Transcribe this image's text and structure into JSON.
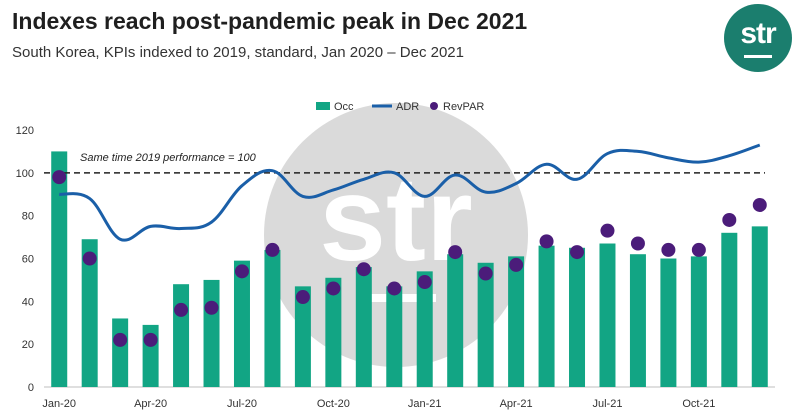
{
  "header": {
    "title": "Indexes reach post-pandemic peak in Dec 2021",
    "subtitle": "South Korea, KPIs indexed to 2019, standard, Jan 2020 – Dec 2021",
    "logo_text": "str",
    "watermark_text": "str"
  },
  "colors": {
    "occ": "#12a584",
    "adr": "#1a5fa8",
    "revpar": "#4b1c7a",
    "reference": "#222222",
    "logo": "#1b7e6e"
  },
  "chart_data": {
    "type": "bar",
    "title": "Indexes reach post-pandemic peak in Dec 2021",
    "subtitle": "South Korea, KPIs indexed to 2019, standard, Jan 2020 – Dec 2021",
    "xlabel": "",
    "ylabel": "",
    "ylim": [
      0,
      120
    ],
    "yticks": [
      0,
      20,
      40,
      60,
      80,
      100,
      120
    ],
    "grid": false,
    "legend_position": "top-center",
    "categories": [
      "Jan-20",
      "Feb-20",
      "Mar-20",
      "Apr-20",
      "May-20",
      "Jun-20",
      "Jul-20",
      "Aug-20",
      "Sep-20",
      "Oct-20",
      "Nov-20",
      "Dec-20",
      "Jan-21",
      "Feb-21",
      "Mar-21",
      "Apr-21",
      "May-21",
      "Jun-21",
      "Jul-21",
      "Aug-21",
      "Sep-21",
      "Oct-21",
      "Nov-21",
      "Dec-21"
    ],
    "x_tick_labels": [
      "Jan-20",
      "",
      "",
      "Apr-20",
      "",
      "",
      "Jul-20",
      "",
      "",
      "Oct-20",
      "",
      "",
      "Jan-21",
      "",
      "",
      "Apr-21",
      "",
      "",
      "Jul-21",
      "",
      "",
      "Oct-21",
      "",
      ""
    ],
    "series": [
      {
        "name": "Occ",
        "type": "bar",
        "values": [
          110,
          69,
          32,
          29,
          48,
          50,
          59,
          64,
          47,
          51,
          56,
          47,
          54,
          62,
          58,
          61,
          66,
          65,
          67,
          62,
          60,
          61,
          72,
          75
        ]
      },
      {
        "name": "ADR",
        "type": "line",
        "values": [
          90,
          88,
          69,
          75,
          74,
          77,
          94,
          101,
          89,
          92,
          97,
          100,
          89,
          99,
          91,
          95,
          104,
          97,
          109,
          110,
          107,
          105,
          108,
          113
        ]
      },
      {
        "name": "RevPAR",
        "type": "scatter",
        "values": [
          98,
          60,
          22,
          22,
          36,
          37,
          54,
          64,
          42,
          46,
          55,
          46,
          49,
          63,
          53,
          57,
          68,
          63,
          73,
          67,
          64,
          64,
          78,
          85
        ]
      }
    ],
    "reference_line": {
      "value": 100,
      "label": "Same time 2019 performance = 100"
    }
  }
}
